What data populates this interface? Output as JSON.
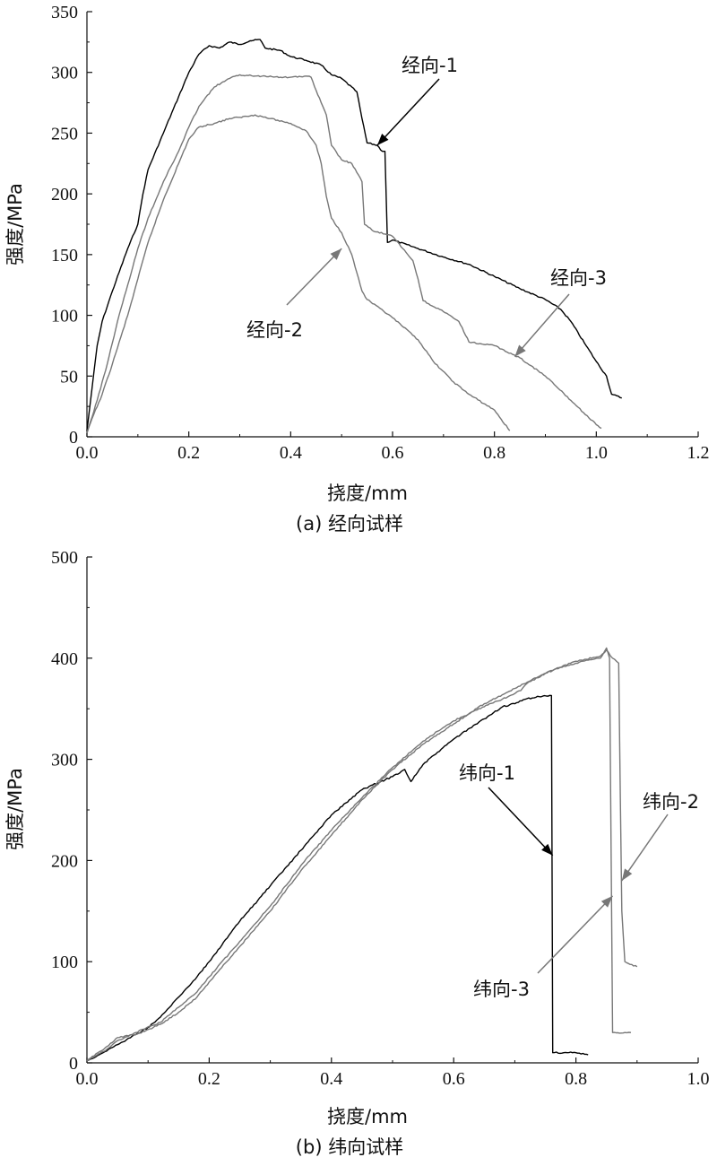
{
  "chart_data": [
    {
      "type": "line",
      "caption": "(a) 经向试样",
      "xlabel": "挠度/mm",
      "ylabel": "强度/MPa",
      "xlim": [
        0,
        1.2
      ],
      "ylim": [
        0,
        350
      ],
      "xticks": [
        0.0,
        0.2,
        0.4,
        0.6,
        0.8,
        1.0,
        1.2
      ],
      "xtick_labels": [
        "0.0",
        "0.2",
        "0.4",
        "0.6",
        "0.8",
        "1.0",
        "1.2"
      ],
      "yticks": [
        0,
        50,
        100,
        150,
        200,
        250,
        300,
        350
      ],
      "ytick_labels": [
        "0",
        "50",
        "100",
        "150",
        "200",
        "250",
        "300",
        "350"
      ],
      "grid": false,
      "series": [
        {
          "name": "经向-1",
          "color": "#000000",
          "points": [
            [
              0,
              5
            ],
            [
              0.01,
              40
            ],
            [
              0.02,
              75
            ],
            [
              0.03,
              95
            ],
            [
              0.05,
              120
            ],
            [
              0.08,
              155
            ],
            [
              0.1,
              175
            ],
            [
              0.11,
              200
            ],
            [
              0.12,
              220
            ],
            [
              0.15,
              250
            ],
            [
              0.18,
              280
            ],
            [
              0.2,
              300
            ],
            [
              0.22,
              315
            ],
            [
              0.24,
              322
            ],
            [
              0.26,
              320
            ],
            [
              0.28,
              325
            ],
            [
              0.3,
              323
            ],
            [
              0.32,
              326
            ],
            [
              0.34,
              327
            ],
            [
              0.35,
              320
            ],
            [
              0.38,
              318
            ],
            [
              0.4,
              313
            ],
            [
              0.43,
              310
            ],
            [
              0.46,
              306
            ],
            [
              0.48,
              298
            ],
            [
              0.5,
              295
            ],
            [
              0.53,
              284
            ],
            [
              0.54,
              262
            ],
            [
              0.55,
              242
            ],
            [
              0.57,
              240
            ],
            [
              0.58,
              235
            ],
            [
              0.585,
              235
            ],
            [
              0.59,
              160
            ],
            [
              0.6,
              162
            ],
            [
              0.65,
              155
            ],
            [
              0.7,
              148
            ],
            [
              0.75,
              142
            ],
            [
              0.8,
              132
            ],
            [
              0.85,
              122
            ],
            [
              0.9,
              113
            ],
            [
              0.93,
              105
            ],
            [
              0.95,
              95
            ],
            [
              0.98,
              75
            ],
            [
              1.0,
              62
            ],
            [
              1.02,
              50
            ],
            [
              1.03,
              35
            ],
            [
              1.05,
              32
            ]
          ]
        },
        {
          "name": "经向-2",
          "color": "#777777",
          "points": [
            [
              0,
              3
            ],
            [
              0.01,
              15
            ],
            [
              0.03,
              35
            ],
            [
              0.05,
              60
            ],
            [
              0.08,
              100
            ],
            [
              0.1,
              130
            ],
            [
              0.12,
              160
            ],
            [
              0.15,
              195
            ],
            [
              0.18,
              225
            ],
            [
              0.2,
              245
            ],
            [
              0.22,
              255
            ],
            [
              0.25,
              258
            ],
            [
              0.28,
              262
            ],
            [
              0.3,
              263
            ],
            [
              0.33,
              265
            ],
            [
              0.36,
              262
            ],
            [
              0.4,
              258
            ],
            [
              0.43,
              252
            ],
            [
              0.45,
              240
            ],
            [
              0.46,
              225
            ],
            [
              0.47,
              198
            ],
            [
              0.48,
              180
            ],
            [
              0.5,
              168
            ],
            [
              0.52,
              150
            ],
            [
              0.53,
              135
            ],
            [
              0.54,
              120
            ],
            [
              0.55,
              113
            ],
            [
              0.6,
              98
            ],
            [
              0.65,
              80
            ],
            [
              0.68,
              62
            ],
            [
              0.72,
              45
            ],
            [
              0.75,
              35
            ],
            [
              0.8,
              22
            ],
            [
              0.83,
              5
            ]
          ]
        },
        {
          "name": "经向-3",
          "color": "#777777",
          "points": [
            [
              0,
              3
            ],
            [
              0.02,
              30
            ],
            [
              0.04,
              60
            ],
            [
              0.06,
              95
            ],
            [
              0.08,
              125
            ],
            [
              0.1,
              155
            ],
            [
              0.12,
              180
            ],
            [
              0.15,
              210
            ],
            [
              0.18,
              235
            ],
            [
              0.2,
              255
            ],
            [
              0.22,
              272
            ],
            [
              0.25,
              288
            ],
            [
              0.28,
              295
            ],
            [
              0.3,
              298
            ],
            [
              0.33,
              297
            ],
            [
              0.36,
              297
            ],
            [
              0.38,
              296
            ],
            [
              0.4,
              296
            ],
            [
              0.43,
              297
            ],
            [
              0.44,
              296
            ],
            [
              0.45,
              285
            ],
            [
              0.46,
              275
            ],
            [
              0.47,
              265
            ],
            [
              0.48,
              240
            ],
            [
              0.5,
              228
            ],
            [
              0.52,
              225
            ],
            [
              0.54,
              210
            ],
            [
              0.545,
              175
            ],
            [
              0.56,
              170
            ],
            [
              0.6,
              165
            ],
            [
              0.62,
              155
            ],
            [
              0.64,
              145
            ],
            [
              0.65,
              130
            ],
            [
              0.66,
              112
            ],
            [
              0.7,
              103
            ],
            [
              0.73,
              95
            ],
            [
              0.75,
              78
            ],
            [
              0.8,
              75
            ],
            [
              0.85,
              65
            ],
            [
              0.9,
              50
            ],
            [
              0.95,
              30
            ],
            [
              1.0,
              10
            ],
            [
              1.01,
              7
            ]
          ]
        }
      ],
      "annotations": [
        {
          "text": "经向-1",
          "target": [
            0.57,
            240
          ]
        },
        {
          "text": "经向-2",
          "target": [
            0.5,
            155
          ]
        },
        {
          "text": "经向-3",
          "target": [
            0.84,
            66
          ]
        }
      ]
    },
    {
      "type": "line",
      "caption": "(b) 纬向试样",
      "xlabel": "挠度/mm",
      "ylabel": "强度/MPa",
      "xlim": [
        0,
        1.0
      ],
      "ylim": [
        0,
        500
      ],
      "xticks": [
        0.0,
        0.2,
        0.4,
        0.6,
        0.8,
        1.0
      ],
      "xtick_labels": [
        "0.0",
        "0.2",
        "0.4",
        "0.6",
        "0.8",
        "1.0"
      ],
      "yticks": [
        0,
        100,
        200,
        300,
        400,
        500
      ],
      "ytick_labels": [
        "0",
        "100",
        "200",
        "300",
        "400",
        "500"
      ],
      "grid": false,
      "series": [
        {
          "name": "纬向-1",
          "color": "#000000",
          "points": [
            [
              0,
              2
            ],
            [
              0.02,
              8
            ],
            [
              0.05,
              18
            ],
            [
              0.08,
              28
            ],
            [
              0.1,
              35
            ],
            [
              0.12,
              45
            ],
            [
              0.15,
              65
            ],
            [
              0.18,
              85
            ],
            [
              0.2,
              100
            ],
            [
              0.25,
              140
            ],
            [
              0.3,
              175
            ],
            [
              0.35,
              210
            ],
            [
              0.4,
              245
            ],
            [
              0.45,
              270
            ],
            [
              0.5,
              283
            ],
            [
              0.52,
              290
            ],
            [
              0.53,
              278
            ],
            [
              0.55,
              295
            ],
            [
              0.6,
              320
            ],
            [
              0.65,
              340
            ],
            [
              0.68,
              352
            ],
            [
              0.7,
              355
            ],
            [
              0.72,
              360
            ],
            [
              0.74,
              362
            ],
            [
              0.76,
              363
            ],
            [
              0.762,
              10
            ],
            [
              0.78,
              10
            ],
            [
              0.8,
              10
            ],
            [
              0.82,
              8
            ]
          ]
        },
        {
          "name": "纬向-2",
          "color": "#777777",
          "points": [
            [
              0,
              2
            ],
            [
              0.03,
              15
            ],
            [
              0.05,
              25
            ],
            [
              0.08,
              28
            ],
            [
              0.12,
              38
            ],
            [
              0.15,
              50
            ],
            [
              0.18,
              65
            ],
            [
              0.2,
              80
            ],
            [
              0.25,
              115
            ],
            [
              0.3,
              150
            ],
            [
              0.35,
              190
            ],
            [
              0.4,
              225
            ],
            [
              0.45,
              260
            ],
            [
              0.5,
              290
            ],
            [
              0.55,
              315
            ],
            [
              0.6,
              335
            ],
            [
              0.65,
              355
            ],
            [
              0.7,
              370
            ],
            [
              0.75,
              385
            ],
            [
              0.8,
              397
            ],
            [
              0.84,
              402
            ],
            [
              0.85,
              408
            ],
            [
              0.86,
              400
            ],
            [
              0.87,
              395
            ],
            [
              0.875,
              150
            ],
            [
              0.88,
              100
            ],
            [
              0.9,
              95
            ]
          ]
        },
        {
          "name": "纬向-3",
          "color": "#777777",
          "points": [
            [
              0,
              2
            ],
            [
              0.03,
              12
            ],
            [
              0.05,
              22
            ],
            [
              0.08,
              30
            ],
            [
              0.12,
              40
            ],
            [
              0.15,
              55
            ],
            [
              0.18,
              70
            ],
            [
              0.2,
              85
            ],
            [
              0.25,
              120
            ],
            [
              0.3,
              155
            ],
            [
              0.35,
              195
            ],
            [
              0.4,
              230
            ],
            [
              0.45,
              262
            ],
            [
              0.5,
              292
            ],
            [
              0.55,
              318
            ],
            [
              0.6,
              338
            ],
            [
              0.65,
              352
            ],
            [
              0.7,
              365
            ],
            [
              0.71,
              368
            ],
            [
              0.72,
              375
            ],
            [
              0.75,
              385
            ],
            [
              0.78,
              392
            ],
            [
              0.8,
              395
            ],
            [
              0.82,
              398
            ],
            [
              0.84,
              400
            ],
            [
              0.85,
              410
            ],
            [
              0.855,
              400
            ],
            [
              0.86,
              30
            ],
            [
              0.88,
              30
            ],
            [
              0.89,
              30
            ]
          ]
        }
      ],
      "annotations": [
        {
          "text": "纬向-1",
          "target": [
            0.762,
            205
          ]
        },
        {
          "text": "纬向-2",
          "target": [
            0.875,
            180
          ]
        },
        {
          "text": "纬向-3",
          "target": [
            0.86,
            165
          ]
        }
      ]
    }
  ]
}
